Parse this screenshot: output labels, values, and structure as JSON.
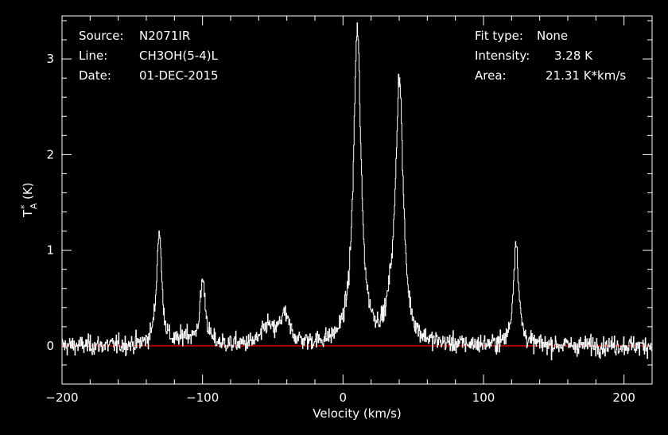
{
  "header": {
    "source_label": "Source:",
    "source_value": "N2071IR",
    "line_label": "Line:",
    "line_value": "CH3OH(5-4)L",
    "date_label": "Date:",
    "date_value": "01-DEC-2015",
    "fit_label": "Fit type:",
    "fit_value": "None",
    "intensity_label": "Intensity:",
    "intensity_value": "3.28 K",
    "area_label": "Area:",
    "area_value": "21.31 K*km/s"
  },
  "chart_data": {
    "type": "line",
    "xlabel": "Velocity (km/s)",
    "ylabel_main": "T",
    "ylabel_sup": "*",
    "ylabel_sub": "A",
    "ylabel_unit": "(K)",
    "xlim": [
      -200,
      220
    ],
    "ylim": [
      -0.4,
      3.45
    ],
    "x_ticks": [
      -200,
      -100,
      0,
      100,
      200
    ],
    "x_tick_labels": [
      "−200",
      "−100",
      "0",
      "100",
      "200"
    ],
    "y_ticks": [
      0,
      1,
      2,
      3
    ],
    "y_tick_labels": [
      "0",
      "1",
      "2",
      "3"
    ],
    "baseline": 0,
    "noise_rms_K": 0.05,
    "series": [
      {
        "style": "step",
        "lines_kms": [
          {
            "center": -131,
            "peak": 1.2,
            "width": 2.2
          },
          {
            "center": -100,
            "peak": 0.68,
            "width": 2.3
          },
          {
            "center": -112,
            "peak": 0.1,
            "width": 3
          },
          {
            "center": -54,
            "peak": 0.18,
            "width": 4
          },
          {
            "center": -42,
            "peak": 0.3,
            "width": 4.5
          },
          {
            "center": 10,
            "peak": 3.28,
            "width": 3.2
          },
          {
            "center": 34,
            "peak": 0.22,
            "width": 3
          },
          {
            "center": 40,
            "peak": 2.75,
            "width": 3.2
          },
          {
            "center": 123,
            "peak": 1.1,
            "width": 2.2
          }
        ]
      }
    ],
    "colors": {
      "spectrum": "#ffffff",
      "baseline": "#ff0000",
      "axes": "#ffffff",
      "background": "#000000"
    },
    "grid": false
  }
}
